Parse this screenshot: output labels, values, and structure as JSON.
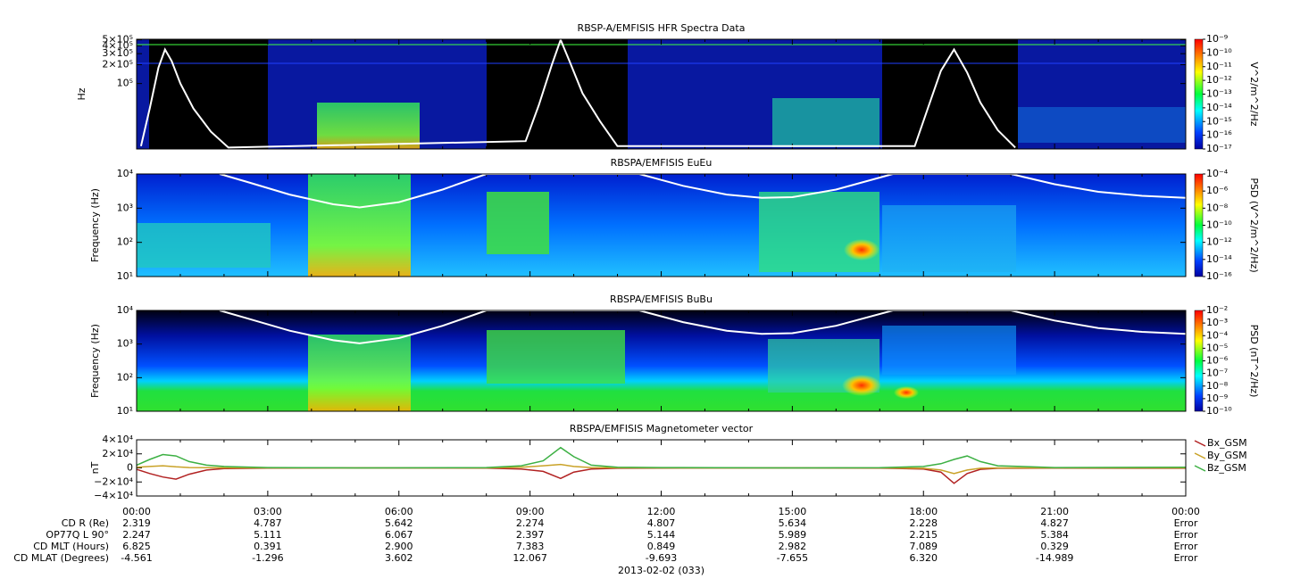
{
  "chart_data": [
    {
      "type": "spectrogram",
      "title": "RBSP-A/EMFISIS  HFR Spectra Data",
      "ylabel": "Hz",
      "colorbar_label": "V^2/m^2/Hz",
      "xlim": [
        0,
        24
      ],
      "xticks": [
        0,
        3,
        6,
        9,
        12,
        15,
        18,
        21,
        24
      ],
      "log_y": true,
      "ylim": [
        9000,
        510000
      ],
      "yticks": [
        {
          "value": 100000,
          "label": "10⁵"
        },
        {
          "value": 200000,
          "label": "2×10⁵"
        },
        {
          "value": 300000,
          "label": "3×10⁵"
        },
        {
          "value": 400000,
          "label": "4×10⁵"
        },
        {
          "value": 500000,
          "label": "5×10⁵"
        }
      ],
      "clim": [
        1e-17,
        1e-09
      ],
      "cticks": [
        {
          "value": 1e-09,
          "label": "10⁻⁹"
        },
        {
          "value": 1e-10,
          "label": "10⁻¹⁰"
        },
        {
          "value": 1e-11,
          "label": "10⁻¹¹"
        },
        {
          "value": 1e-12,
          "label": "10⁻¹²"
        },
        {
          "value": 1e-13,
          "label": "10⁻¹³"
        },
        {
          "value": 1e-14,
          "label": "10⁻¹⁴"
        },
        {
          "value": 1e-15,
          "label": "10⁻¹⁵"
        },
        {
          "value": 1e-16,
          "label": "10⁻¹⁶"
        },
        {
          "value": 1e-17,
          "label": "10⁻¹⁷"
        }
      ],
      "curve": {
        "color": "#ffffff",
        "x": [
          0.1,
          0.3,
          0.5,
          0.65,
          0.8,
          1.0,
          1.3,
          1.7,
          2.1,
          8.9,
          9.2,
          9.5,
          9.7,
          9.9,
          10.2,
          10.6,
          11.0,
          17.8,
          18.1,
          18.4,
          18.7,
          19.0,
          19.3,
          19.7,
          20.1
        ],
        "values": [
          10000,
          40000,
          180000,
          350000,
          230000,
          100000,
          40000,
          17000,
          9500,
          12000,
          45000,
          200000,
          500000,
          230000,
          70000,
          25000,
          10000,
          10000,
          40000,
          160000,
          350000,
          150000,
          50000,
          18000,
          9500
        ]
      }
    },
    {
      "type": "spectrogram",
      "title": "RBSPA/EMFISIS  EuEu",
      "ylabel": "Frequency (Hz)",
      "colorbar_label": "PSD (V^2/m^2/Hz)",
      "xlim": [
        0,
        24
      ],
      "xticks": [
        0,
        3,
        6,
        9,
        12,
        15,
        18,
        21,
        24
      ],
      "log_y": true,
      "ylim": [
        10,
        10000
      ],
      "yticks": [
        {
          "value": 10,
          "label": "10¹"
        },
        {
          "value": 100,
          "label": "10²"
        },
        {
          "value": 1000,
          "label": "10³"
        },
        {
          "value": 10000,
          "label": "10⁴"
        }
      ],
      "clim": [
        1e-16,
        0.0001
      ],
      "cticks": [
        {
          "value": 0.0001,
          "label": "10⁻⁴"
        },
        {
          "value": 1e-06,
          "label": "10⁻⁶"
        },
        {
          "value": 1e-08,
          "label": "10⁻⁸"
        },
        {
          "value": 1e-10,
          "label": "10⁻¹⁰"
        },
        {
          "value": 1e-12,
          "label": "10⁻¹²"
        },
        {
          "value": 1e-14,
          "label": "10⁻¹⁴"
        },
        {
          "value": 1e-16,
          "label": "10⁻¹⁶"
        }
      ],
      "curve": {
        "color": "#ffffff",
        "x": [
          1.9,
          2.5,
          3.5,
          4.5,
          5.1,
          6.0,
          7.0,
          8.0,
          11.5,
          12.5,
          13.5,
          14.3,
          15.0,
          16.0,
          17.3,
          20.0,
          21.0,
          22.0,
          23.0,
          24.0
        ],
        "values": [
          10000,
          6000,
          2500,
          1300,
          1050,
          1500,
          3500,
          10000,
          10000,
          4500,
          2500,
          2000,
          2100,
          3500,
          10000,
          10000,
          5000,
          3000,
          2300,
          2000
        ]
      }
    },
    {
      "type": "spectrogram",
      "title": "RBSPA/EMFISIS  BuBu",
      "ylabel": "Frequency (Hz)",
      "colorbar_label": "PSD (nT^2/Hz)",
      "xlim": [
        0,
        24
      ],
      "xticks": [
        0,
        3,
        6,
        9,
        12,
        15,
        18,
        21,
        24
      ],
      "log_y": true,
      "ylim": [
        10,
        10000
      ],
      "yticks": [
        {
          "value": 10,
          "label": "10¹"
        },
        {
          "value": 100,
          "label": "10²"
        },
        {
          "value": 1000,
          "label": "10³"
        },
        {
          "value": 10000,
          "label": "10⁴"
        }
      ],
      "clim": [
        1e-10,
        0.01
      ],
      "cticks": [
        {
          "value": 0.01,
          "label": "10⁻²"
        },
        {
          "value": 0.001,
          "label": "10⁻³"
        },
        {
          "value": 0.0001,
          "label": "10⁻⁴"
        },
        {
          "value": 1e-05,
          "label": "10⁻⁵"
        },
        {
          "value": 1e-06,
          "label": "10⁻⁶"
        },
        {
          "value": 1e-07,
          "label": "10⁻⁷"
        },
        {
          "value": 1e-08,
          "label": "10⁻⁸"
        },
        {
          "value": 1e-09,
          "label": "10⁻⁹"
        },
        {
          "value": 1e-10,
          "label": "10⁻¹⁰"
        }
      ],
      "curve": {
        "color": "#ffffff",
        "x": [
          1.9,
          2.5,
          3.5,
          4.5,
          5.1,
          6.0,
          7.0,
          8.0,
          11.5,
          12.5,
          13.5,
          14.3,
          15.0,
          16.0,
          17.3,
          20.0,
          21.0,
          22.0,
          23.0,
          24.0
        ],
        "values": [
          10000,
          6000,
          2500,
          1300,
          1050,
          1500,
          3500,
          10000,
          10000,
          4500,
          2500,
          2000,
          2100,
          3500,
          10000,
          10000,
          5000,
          3000,
          2300,
          2000
        ]
      }
    },
    {
      "type": "line",
      "title": "RBSPA/EMFISIS  Magnetometer vector",
      "ylabel": "nT",
      "xlim": [
        0,
        24
      ],
      "xticks": [
        {
          "value": 0,
          "label": "00:00"
        },
        {
          "value": 3,
          "label": "03:00"
        },
        {
          "value": 6,
          "label": "06:00"
        },
        {
          "value": 9,
          "label": "09:00"
        },
        {
          "value": 12,
          "label": "12:00"
        },
        {
          "value": 15,
          "label": "15:00"
        },
        {
          "value": 18,
          "label": "18:00"
        },
        {
          "value": 21,
          "label": "21:00"
        },
        {
          "value": 24,
          "label": "00:00"
        }
      ],
      "ylim": [
        -40000,
        40000
      ],
      "yticks": [
        {
          "value": -40000,
          "label": "−4×10⁴"
        },
        {
          "value": -20000,
          "label": "−2×10⁴"
        },
        0,
        {
          "value": 20000,
          "label": "2×10⁴"
        },
        {
          "value": 40000,
          "label": "4×10⁴"
        }
      ],
      "x": [
        0,
        0.3,
        0.6,
        0.9,
        1.2,
        1.6,
        2,
        3,
        5,
        8,
        8.8,
        9.3,
        9.7,
        10,
        10.4,
        11,
        12,
        15,
        17,
        18,
        18.4,
        18.7,
        19,
        19.3,
        19.7,
        21,
        24
      ],
      "series": [
        {
          "name": "Bx_GSM",
          "color": "#b22222",
          "values": [
            -2000,
            -8000,
            -13000,
            -16000,
            -9000,
            -3000,
            -1000,
            -300,
            0,
            -300,
            -1500,
            -5000,
            -15000,
            -6000,
            -1500,
            -500,
            -200,
            0,
            -200,
            -1500,
            -6000,
            -22000,
            -8000,
            -2000,
            -500,
            -200,
            -500
          ]
        },
        {
          "name": "By_GSM",
          "color": "#c9a227",
          "values": [
            1000,
            2000,
            3000,
            1500,
            500,
            200,
            100,
            0,
            0,
            0,
            1000,
            3000,
            5000,
            2000,
            500,
            100,
            0,
            0,
            0,
            -500,
            -3000,
            -8000,
            -3000,
            -500,
            0,
            0,
            0
          ]
        },
        {
          "name": "Bz_GSM",
          "color": "#3cb043",
          "values": [
            4000,
            12000,
            19000,
            17000,
            9000,
            4000,
            2000,
            500,
            0,
            500,
            3000,
            10000,
            29000,
            16000,
            4000,
            1000,
            500,
            0,
            300,
            2000,
            6000,
            12000,
            17000,
            9000,
            3000,
            500,
            1000
          ]
        }
      ],
      "ephemeris": {
        "date": "2013-02-02 (033)",
        "rows": [
          {
            "label": "CD R (Re)",
            "values": [
              "2.319",
              "4.787",
              "5.642",
              "2.274",
              "4.807",
              "5.634",
              "2.228",
              "4.827",
              "Error"
            ]
          },
          {
            "label": "OP77Q L 90°",
            "values": [
              "2.247",
              "5.111",
              "6.067",
              "2.397",
              "5.144",
              "5.989",
              "2.215",
              "5.384",
              "Error"
            ]
          },
          {
            "label": "CD MLT (Hours)",
            "values": [
              "6.825",
              "0.391",
              "2.900",
              "7.383",
              "0.849",
              "2.982",
              "7.089",
              "0.329",
              "Error"
            ]
          },
          {
            "label": "CD MLAT (Degrees)",
            "values": [
              "-4.561",
              "-1.296",
              "3.602",
              "12.067",
              "-9.693",
              "-7.655",
              "6.320",
              "-14.989",
              "Error"
            ]
          }
        ]
      }
    }
  ]
}
